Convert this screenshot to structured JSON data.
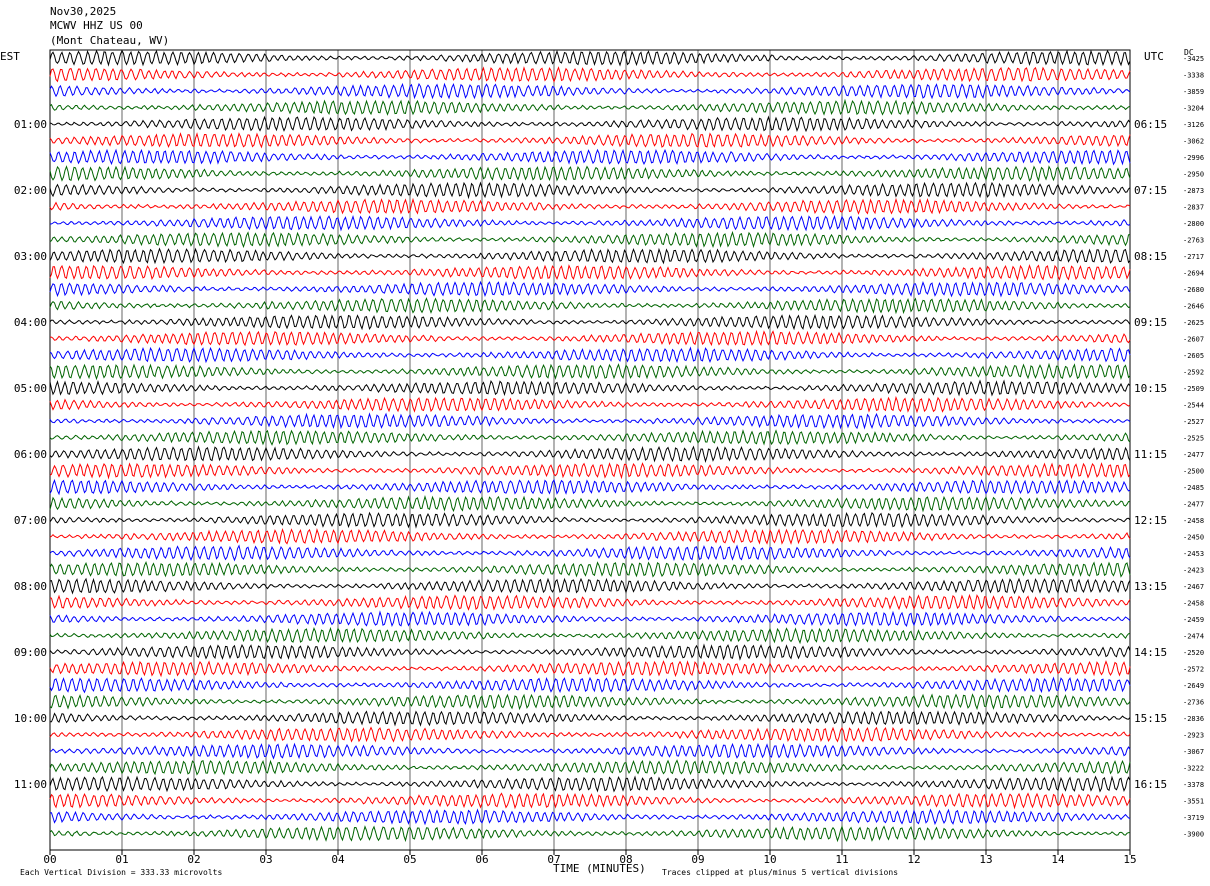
{
  "header": {
    "date": "Nov30,2025",
    "station": "MCWV HHZ US 00",
    "location": "(Mont Chateau, WV)"
  },
  "left_zone": "EST",
  "right_zone": "UTC",
  "dc_label": "DC",
  "footer": {
    "scale": "Each Vertical Division =  333.33 microvolts",
    "xlabel": "TIME (MINUTES)",
    "clip": "Traces clipped at plus/minus 5 vertical divisions"
  },
  "colors": {
    "trace_cycle": [
      "#000000",
      "#ff0000",
      "#0000ff",
      "#006400"
    ],
    "grid": "#000000"
  },
  "chart_data": {
    "type": "line",
    "title": "",
    "xlabel": "TIME (MINUTES)",
    "ylabel": "",
    "xlim": [
      0,
      15
    ],
    "x_ticks": [
      "00",
      "01",
      "02",
      "03",
      "04",
      "05",
      "06",
      "07",
      "08",
      "09",
      "10",
      "11",
      "12",
      "13",
      "14",
      "15"
    ],
    "grid": true,
    "row_count": 48,
    "left_hour_labels": [
      "01:00",
      "02:00",
      "03:00",
      "04:00",
      "05:00",
      "06:00",
      "07:00",
      "08:00",
      "09:00",
      "10:00",
      "11:00"
    ],
    "right_hour_labels": [
      "06:15",
      "07:15",
      "08:15",
      "09:15",
      "10:15",
      "11:15",
      "12:15",
      "13:15",
      "14:15",
      "15:15",
      "16:15"
    ],
    "dc_offsets": [
      "-3425",
      "-3338",
      "-3859",
      "-3204",
      "-3126",
      "-3062",
      "-2996",
      "-2950",
      "-2873",
      "-2837",
      "-2800",
      "-2763",
      "-2717",
      "-2694",
      "-2680",
      "-2646",
      "-2625",
      "-2607",
      "-2605",
      "-2592",
      "-2509",
      "-2544",
      "-2527",
      "-2525",
      "-2477",
      "-2500",
      "-2485",
      "-2477",
      "-2458",
      "-2450",
      "-2453",
      "-2423",
      "-2467",
      "-2458",
      "-2459",
      "-2474",
      "-2520",
      "-2572",
      "-2649",
      "-2736",
      "-2836",
      "-2923",
      "-3067",
      "-3222",
      "-3378",
      "-3551",
      "-3719",
      "-3900"
    ]
  }
}
